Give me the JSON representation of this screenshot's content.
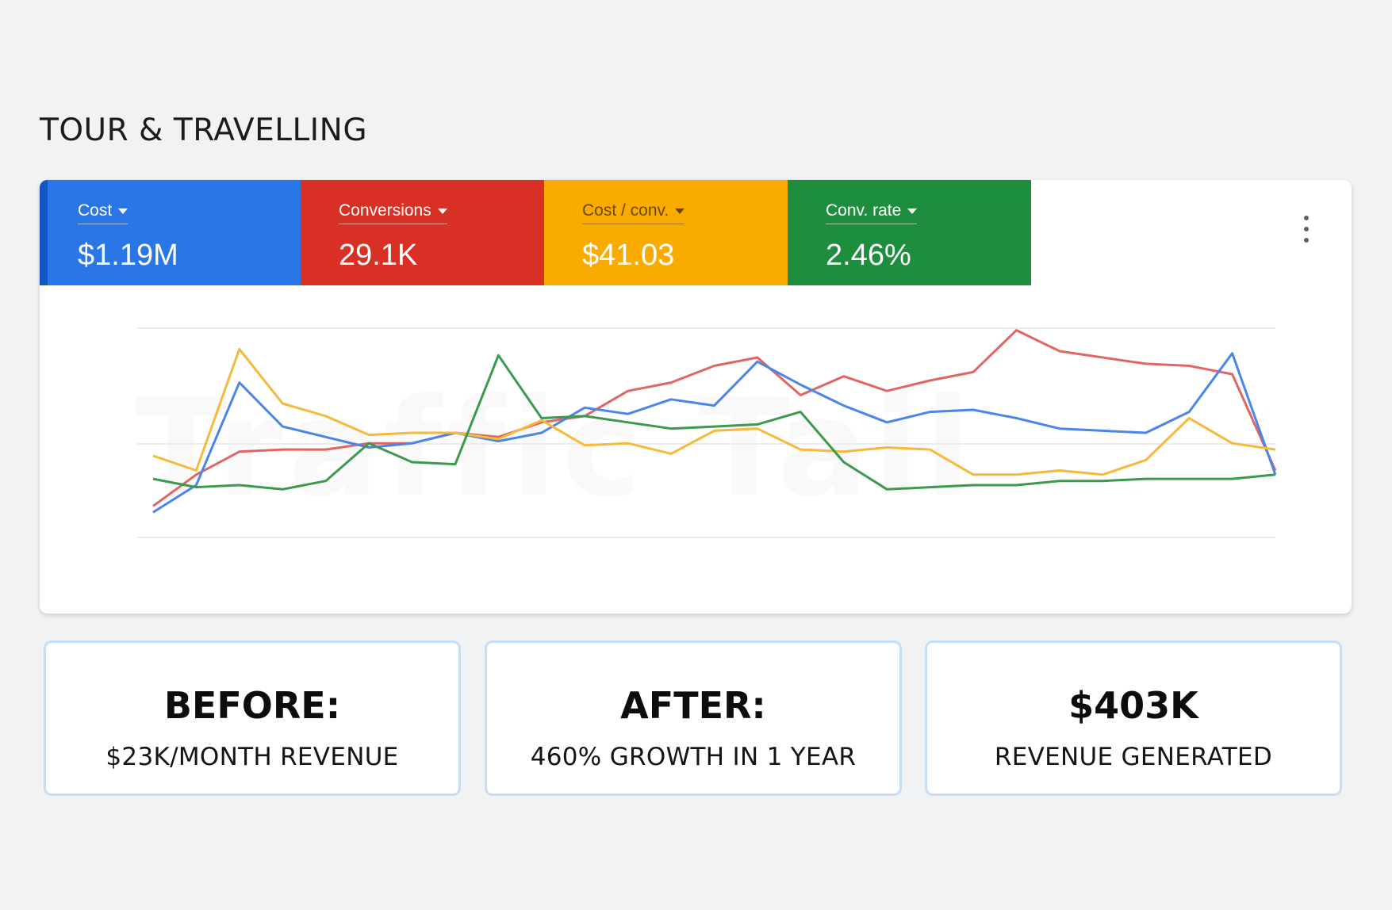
{
  "page": {
    "title": "TOUR & TRAVELLING"
  },
  "metrics": [
    {
      "label": "Cost",
      "value": "$1.19M",
      "color": "#2a76e6",
      "labelColor": "#ffffff"
    },
    {
      "label": "Conversions",
      "value": "29.1K",
      "color": "#d93025",
      "labelColor": "#ffffff"
    },
    {
      "label": "Cost / conv.",
      "value": "$41.03",
      "color": "#f9ab00",
      "labelColor": "#6b4a00"
    },
    {
      "label": "Conv. rate",
      "value": "2.46%",
      "color": "#1e8e3e",
      "labelColor": "#ffffff"
    }
  ],
  "watermark": "Traffic Tail",
  "chart_data": {
    "type": "line",
    "x": [
      1,
      2,
      3,
      4,
      5,
      6,
      7,
      8,
      9,
      10,
      11,
      12,
      13,
      14,
      15,
      16,
      17,
      18,
      19,
      20,
      21,
      22,
      23,
      24,
      25,
      26,
      27
    ],
    "ylim": [
      0,
      100
    ],
    "grid": true,
    "series": [
      {
        "color": "#e06666",
        "values": [
          15,
          30,
          41,
          42,
          42,
          45,
          45,
          50,
          48,
          55,
          58,
          70,
          74,
          82,
          86,
          68,
          77,
          70,
          75,
          79,
          99,
          89,
          86,
          83,
          82,
          78,
          32
        ]
      },
      {
        "color": "#4a86e8",
        "values": [
          12,
          25,
          74,
          53,
          48,
          43,
          45,
          50,
          46,
          50,
          62,
          59,
          66,
          63,
          84,
          73,
          63,
          55,
          60,
          61,
          57,
          52,
          51,
          50,
          60,
          88,
          30
        ]
      },
      {
        "color": "#f6b93b",
        "values": [
          39,
          32,
          90,
          64,
          58,
          49,
          50,
          50,
          47,
          56,
          44,
          45,
          40,
          51,
          52,
          42,
          41,
          43,
          42,
          30,
          30,
          32,
          30,
          37,
          57,
          45,
          42
        ]
      },
      {
        "color": "#3c9a4f",
        "values": [
          28,
          24,
          25,
          23,
          27,
          45,
          36,
          35,
          87,
          57,
          58,
          55,
          52,
          53,
          54,
          60,
          36,
          23,
          24,
          25,
          25,
          27,
          27,
          28,
          28,
          28,
          30
        ]
      }
    ]
  },
  "stats": [
    {
      "head": "BEFORE:",
      "sub": "$23K/MONTH REVENUE"
    },
    {
      "head": "AFTER:",
      "sub": "460% GROWTH IN 1 YEAR"
    },
    {
      "head": "$403K",
      "sub": "REVENUE GENERATED"
    }
  ]
}
